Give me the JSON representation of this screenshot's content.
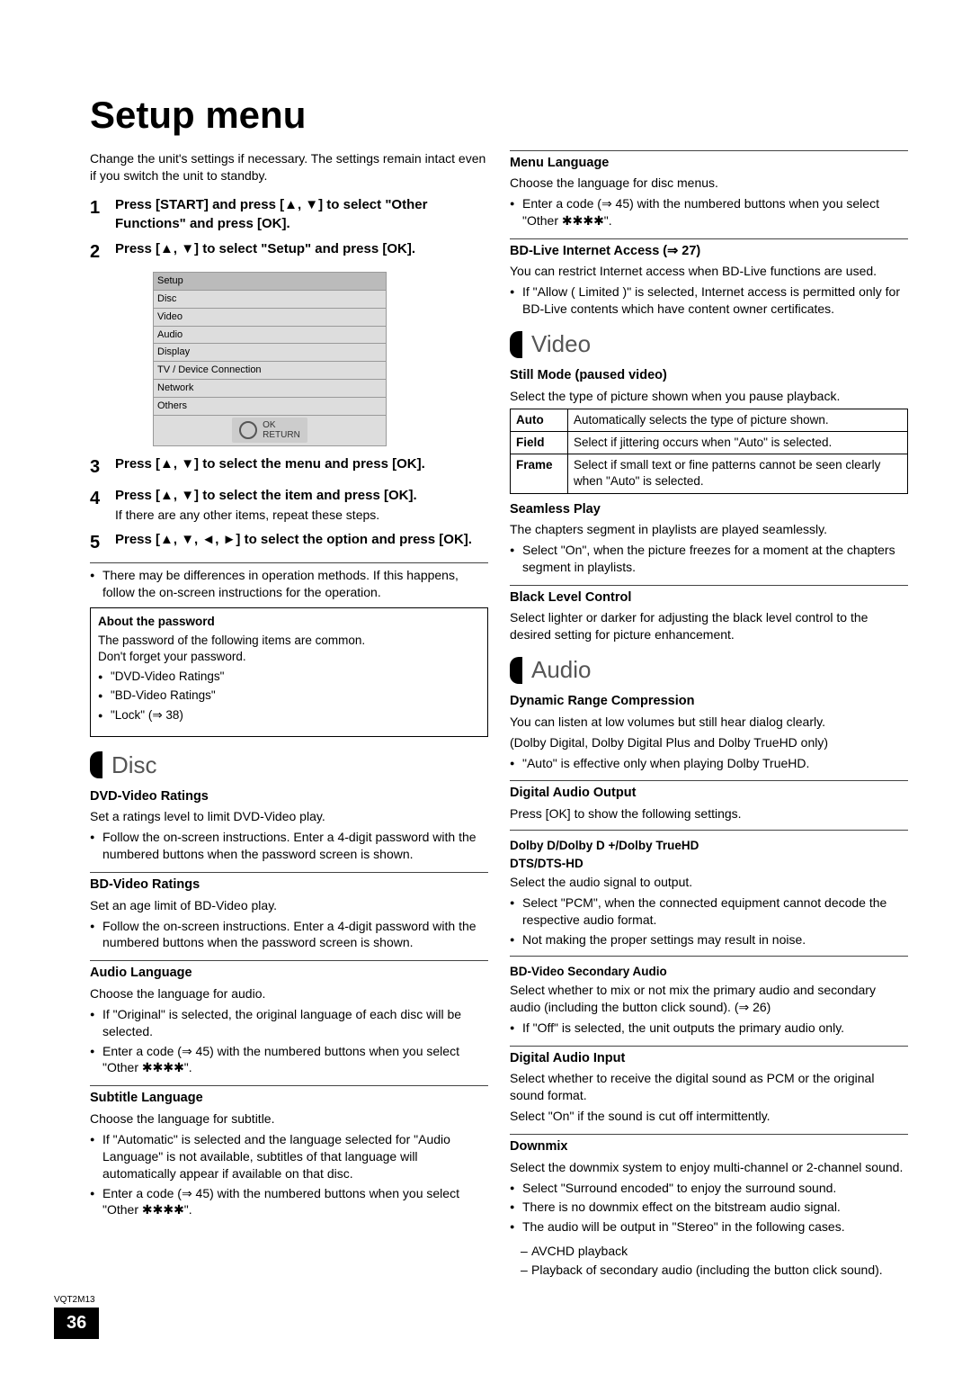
{
  "page_title": "Setup menu",
  "intro": "Change the unit's settings if necessary. The settings remain intact even if you switch the unit to standby.",
  "steps": [
    {
      "num": "1",
      "text": "Press [START] and press [▲, ▼] to select \"Other Functions\" and press [OK]."
    },
    {
      "num": "2",
      "text": "Press [▲, ▼] to select \"Setup\" and press [OK]."
    },
    {
      "num": "3",
      "text": "Press [▲, ▼] to select the menu and press [OK]."
    },
    {
      "num": "4",
      "text": "Press [▲, ▼] to select the item and press [OK].",
      "note": "If there are any other items, repeat these steps."
    },
    {
      "num": "5",
      "text": "Press [▲, ▼, ◄, ►] to select the option and press [OK]."
    }
  ],
  "setup_menu": {
    "header": "Setup",
    "rows": [
      "Disc",
      "Video",
      "Audio",
      "Display",
      "TV / Device Connection",
      "Network",
      "Others"
    ],
    "remote": {
      "ok": "OK",
      "return": "RETURN"
    }
  },
  "step_note_bullets": [
    "There may be differences in operation methods. If this happens, follow the on-screen instructions for the operation."
  ],
  "password_box": {
    "title": "About the password",
    "intro": "The password of the following items are common.",
    "sub": "Don't forget your password.",
    "items": [
      "\"DVD-Video Ratings\"",
      "\"BD-Video Ratings\"",
      "\"Lock\" (⇒ 38)"
    ]
  },
  "disc": {
    "title": "Disc",
    "dvd_ratings": {
      "head": "DVD-Video Ratings",
      "para": "Set a ratings level to limit DVD-Video play.",
      "bullets": [
        "Follow the on-screen instructions. Enter a 4-digit password with the numbered buttons when the password screen is shown."
      ]
    },
    "bd_ratings": {
      "head": "BD-Video Ratings",
      "para": "Set an age limit of BD-Video play.",
      "bullets": [
        "Follow the on-screen instructions. Enter a 4-digit password with the numbered buttons when the password screen is shown."
      ]
    },
    "audio_lang": {
      "head": "Audio Language",
      "para": "Choose the language for audio.",
      "bullets": [
        "If \"Original\" is selected, the original language of each disc will be selected.",
        "Enter a code (⇒ 45) with the numbered buttons when you select \"Other ✱✱✱✱\"."
      ]
    },
    "subtitle_lang": {
      "head": "Subtitle Language",
      "para": "Choose the language for subtitle.",
      "bullets": [
        "If \"Automatic\" is selected and the language selected for \"Audio Language\" is not available, subtitles of that language will automatically appear if available on that disc.",
        "Enter a code (⇒ 45) with the numbered buttons when you select \"Other ✱✱✱✱\"."
      ]
    },
    "menu_lang": {
      "head": "Menu Language",
      "para": "Choose the language for disc menus.",
      "bullets": [
        "Enter a code (⇒ 45) with the numbered buttons when you select \"Other ✱✱✱✱\"."
      ]
    },
    "bdlive": {
      "head": "BD-Live Internet Access (⇒ 27)",
      "para": "You can restrict Internet access when BD-Live functions are used.",
      "bullets": [
        "If \"Allow ( Limited )\" is selected, Internet access is permitted only for BD-Live contents which have content owner certificates."
      ]
    }
  },
  "video": {
    "title": "Video",
    "still_mode": {
      "head": "Still Mode (paused video)",
      "para": "Select the type of picture shown when you pause playback.",
      "options": [
        {
          "k": "Auto",
          "v": "Automatically selects the type of picture shown."
        },
        {
          "k": "Field",
          "v": "Select if jittering occurs when \"Auto\" is selected."
        },
        {
          "k": "Frame",
          "v": "Select if small text or fine patterns cannot be seen clearly when \"Auto\" is selected."
        }
      ]
    },
    "seamless": {
      "head": "Seamless Play",
      "para": "The chapters segment in playlists are played seamlessly.",
      "bullets": [
        "Select \"On\", when the picture freezes for a moment at the chapters segment in playlists."
      ]
    },
    "black_level": {
      "head": "Black Level Control",
      "para": "Select lighter or darker for adjusting the black level control to the desired setting for picture enhancement."
    }
  },
  "audio": {
    "title": "Audio",
    "drc": {
      "head": "Dynamic Range Compression",
      "para": "You can listen at low volumes but still hear dialog clearly.",
      "sub": "(Dolby Digital, Dolby Digital Plus and Dolby TrueHD only)",
      "bullets": [
        "\"Auto\" is effective only when playing Dolby TrueHD."
      ]
    },
    "digital_out": {
      "head": "Digital Audio Output",
      "para": "Press [OK] to show the following settings.",
      "subitems": [
        {
          "title": "Dolby D/Dolby D +/Dolby TrueHD",
          "title2": "DTS/DTS-HD",
          "para": "Select the audio signal to output.",
          "bullets": [
            "Select \"PCM\", when the connected equipment cannot decode the respective audio format.",
            "Not making the proper settings may result in noise."
          ]
        },
        {
          "title": "BD-Video Secondary Audio",
          "para": "Select whether to mix or not mix the primary audio and secondary audio (including the button click sound). (⇒ 26)",
          "bullets": [
            "If \"Off\" is selected, the unit outputs the primary audio only."
          ]
        }
      ]
    },
    "digital_in": {
      "head": "Digital Audio Input",
      "para": "Select whether to receive the digital sound as PCM or the original sound format.",
      "sub": "Select \"On\" if the sound is cut off intermittently."
    },
    "downmix": {
      "head": "Downmix",
      "para": "Select the downmix system to enjoy multi-channel or 2-channel sound.",
      "bullets": [
        "Select \"Surround encoded\" to enjoy the surround sound.",
        "There is no downmix effect on the bitstream audio signal.",
        "The audio will be output in \"Stereo\" in the following cases."
      ],
      "dashes": [
        "AVCHD playback",
        "Playback of secondary audio (including the button click sound)."
      ]
    }
  },
  "footer": {
    "code": "VQT2M13",
    "page": "36"
  }
}
